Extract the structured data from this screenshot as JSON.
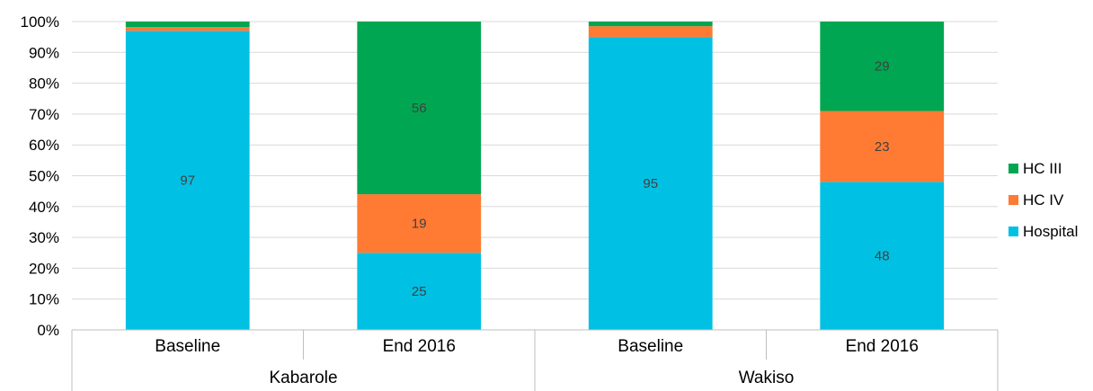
{
  "chart_data": {
    "type": "bar",
    "stacked": true,
    "percent": true,
    "groups": [
      {
        "name": "Kabarole",
        "categories": [
          "Baseline",
          "End 2016"
        ]
      },
      {
        "name": "Wakiso",
        "categories": [
          "Baseline",
          "End 2016"
        ]
      }
    ],
    "categories": [
      "Baseline",
      "End 2016",
      "Baseline",
      "End 2016"
    ],
    "series": [
      {
        "name": "Hospital",
        "color": "#00C1E3",
        "values": [
          97,
          25,
          95,
          48
        ],
        "labels": [
          "97",
          "25",
          "95",
          "48"
        ]
      },
      {
        "name": "HC IV",
        "color": "#FF7A33",
        "values": [
          1.2,
          19,
          3.5,
          23
        ],
        "labels": [
          "",
          "19",
          "",
          "23"
        ]
      },
      {
        "name": "HC III",
        "color": "#00A651",
        "values": [
          1.8,
          56,
          1.5,
          29
        ],
        "labels": [
          "",
          "56",
          "",
          "29"
        ]
      }
    ],
    "y_ticks": [
      "0%",
      "10%",
      "20%",
      "30%",
      "40%",
      "50%",
      "60%",
      "70%",
      "80%",
      "90%",
      "100%"
    ],
    "ylim": [
      0,
      100
    ],
    "legend_order": [
      "HC III",
      "HC IV",
      "Hospital"
    ],
    "legend_position": "right",
    "grid": true
  }
}
